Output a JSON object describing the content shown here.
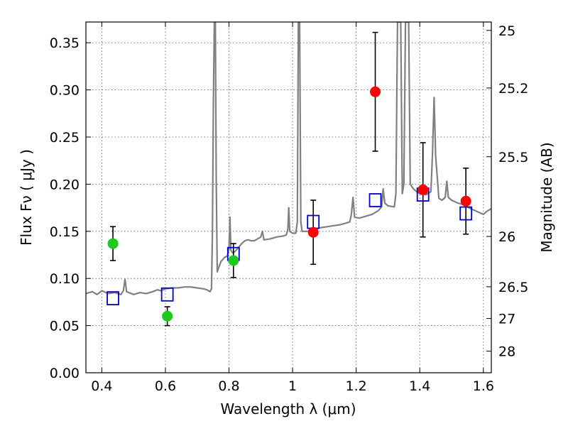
{
  "chart_data": {
    "type": "scatter",
    "xlabel": "Wavelength  λ (μm)",
    "ylabel": "Flux  Fν  ( μJy )",
    "y2label": "Magnitude (AB)",
    "xlim": [
      0.35,
      1.625
    ],
    "ylim": [
      0.0,
      0.372
    ],
    "x_ticks": [
      0.4,
      0.6,
      0.8,
      1.0,
      1.2,
      1.4,
      1.6
    ],
    "x_tick_labels": [
      "0.4",
      "0.6",
      "0.8",
      "1",
      "1.2",
      "1.4",
      "1.6"
    ],
    "y_ticks": [
      0.0,
      0.05,
      0.1,
      0.15,
      0.2,
      0.25,
      0.3,
      0.35
    ],
    "y_tick_labels": [
      "0.00",
      "0.05",
      "0.10",
      "0.15",
      "0.20",
      "0.25",
      "0.30",
      "0.35"
    ],
    "magnitude_ticks": [
      {
        "mag": 25,
        "label": "25"
      },
      {
        "mag": 25.2,
        "label": "25.2"
      },
      {
        "mag": 25.5,
        "label": "25.5"
      },
      {
        "mag": 26,
        "label": "26"
      },
      {
        "mag": 26.5,
        "label": "26.5"
      },
      {
        "mag": 27,
        "label": "27"
      },
      {
        "mag": 28,
        "label": "28"
      }
    ],
    "grid": true,
    "colors": {
      "optical_points": "#1ec81e",
      "nir_points": "#ff0000",
      "model_boxes": "#0000cc",
      "spectrum": "#808080"
    },
    "observed_optical": [
      {
        "x": 0.435,
        "y": 0.137,
        "err": 0.018
      },
      {
        "x": 0.606,
        "y": 0.06,
        "err": 0.01
      },
      {
        "x": 0.814,
        "y": 0.119,
        "err": 0.018
      }
    ],
    "observed_nir": [
      {
        "x": 1.065,
        "y": 0.149,
        "err": 0.034
      },
      {
        "x": 1.26,
        "y": 0.298,
        "err": 0.063
      },
      {
        "x": 1.41,
        "y": 0.194,
        "err": 0.05
      },
      {
        "x": 1.545,
        "y": 0.182,
        "err": 0.035
      }
    ],
    "model_photometry": [
      {
        "x": 0.435,
        "y": 0.079
      },
      {
        "x": 0.606,
        "y": 0.083
      },
      {
        "x": 0.814,
        "y": 0.126
      },
      {
        "x": 1.065,
        "y": 0.16
      },
      {
        "x": 1.26,
        "y": 0.183
      },
      {
        "x": 1.41,
        "y": 0.189
      },
      {
        "x": 1.545,
        "y": 0.169
      }
    ],
    "spectrum": [
      [
        0.35,
        0.084
      ],
      [
        0.37,
        0.086
      ],
      [
        0.385,
        0.083
      ],
      [
        0.4,
        0.087
      ],
      [
        0.42,
        0.084
      ],
      [
        0.44,
        0.085
      ],
      [
        0.46,
        0.083
      ],
      [
        0.468,
        0.087
      ],
      [
        0.473,
        0.099
      ],
      [
        0.478,
        0.086
      ],
      [
        0.5,
        0.083
      ],
      [
        0.52,
        0.085
      ],
      [
        0.54,
        0.084
      ],
      [
        0.56,
        0.086
      ],
      [
        0.575,
        0.088
      ],
      [
        0.585,
        0.087
      ],
      [
        0.6,
        0.089
      ],
      [
        0.62,
        0.09
      ],
      [
        0.64,
        0.09
      ],
      [
        0.66,
        0.091
      ],
      [
        0.68,
        0.091
      ],
      [
        0.7,
        0.09
      ],
      [
        0.72,
        0.089
      ],
      [
        0.73,
        0.088
      ],
      [
        0.74,
        0.086
      ],
      [
        0.745,
        0.089
      ],
      [
        0.748,
        0.15
      ],
      [
        0.751,
        0.29
      ],
      [
        0.754,
        0.372
      ],
      [
        0.757,
        0.372
      ],
      [
        0.76,
        0.2
      ],
      [
        0.763,
        0.107
      ],
      [
        0.768,
        0.112
      ],
      [
        0.775,
        0.118
      ],
      [
        0.785,
        0.122
      ],
      [
        0.795,
        0.124
      ],
      [
        0.8,
        0.131
      ],
      [
        0.803,
        0.165
      ],
      [
        0.806,
        0.13
      ],
      [
        0.812,
        0.127
      ],
      [
        0.82,
        0.129
      ],
      [
        0.83,
        0.133
      ],
      [
        0.84,
        0.137
      ],
      [
        0.85,
        0.14
      ],
      [
        0.86,
        0.141
      ],
      [
        0.87,
        0.14
      ],
      [
        0.88,
        0.14
      ],
      [
        0.89,
        0.142
      ],
      [
        0.9,
        0.144
      ],
      [
        0.905,
        0.15
      ],
      [
        0.91,
        0.141
      ],
      [
        0.93,
        0.142
      ],
      [
        0.95,
        0.144
      ],
      [
        0.97,
        0.145
      ],
      [
        0.98,
        0.146
      ],
      [
        0.985,
        0.152
      ],
      [
        0.988,
        0.175
      ],
      [
        0.991,
        0.15
      ],
      [
        1.0,
        0.148
      ],
      [
        1.01,
        0.148
      ],
      [
        1.015,
        0.16
      ],
      [
        1.018,
        0.372
      ],
      [
        1.022,
        0.372
      ],
      [
        1.026,
        0.16
      ],
      [
        1.03,
        0.15
      ],
      [
        1.05,
        0.15
      ],
      [
        1.07,
        0.152
      ],
      [
        1.09,
        0.154
      ],
      [
        1.11,
        0.155
      ],
      [
        1.13,
        0.156
      ],
      [
        1.15,
        0.157
      ],
      [
        1.17,
        0.159
      ],
      [
        1.18,
        0.16
      ],
      [
        1.185,
        0.168
      ],
      [
        1.19,
        0.186
      ],
      [
        1.195,
        0.165
      ],
      [
        1.21,
        0.164
      ],
      [
        1.23,
        0.166
      ],
      [
        1.25,
        0.168
      ],
      [
        1.27,
        0.172
      ],
      [
        1.28,
        0.176
      ],
      [
        1.285,
        0.195
      ],
      [
        1.29,
        0.18
      ],
      [
        1.3,
        0.177
      ],
      [
        1.32,
        0.176
      ],
      [
        1.325,
        0.19
      ],
      [
        1.33,
        0.372
      ],
      [
        1.34,
        0.372
      ],
      [
        1.345,
        0.19
      ],
      [
        1.35,
        0.2
      ],
      [
        1.355,
        0.372
      ],
      [
        1.365,
        0.372
      ],
      [
        1.37,
        0.2
      ],
      [
        1.38,
        0.195
      ],
      [
        1.39,
        0.192
      ],
      [
        1.4,
        0.19
      ],
      [
        1.42,
        0.189
      ],
      [
        1.435,
        0.192
      ],
      [
        1.44,
        0.231
      ],
      [
        1.445,
        0.292
      ],
      [
        1.45,
        0.23
      ],
      [
        1.46,
        0.185
      ],
      [
        1.47,
        0.183
      ],
      [
        1.48,
        0.186
      ],
      [
        1.485,
        0.203
      ],
      [
        1.49,
        0.186
      ],
      [
        1.5,
        0.183
      ],
      [
        1.52,
        0.18
      ],
      [
        1.54,
        0.178
      ],
      [
        1.56,
        0.174
      ],
      [
        1.58,
        0.171
      ],
      [
        1.6,
        0.168
      ],
      [
        1.61,
        0.171
      ],
      [
        1.625,
        0.174
      ]
    ]
  }
}
